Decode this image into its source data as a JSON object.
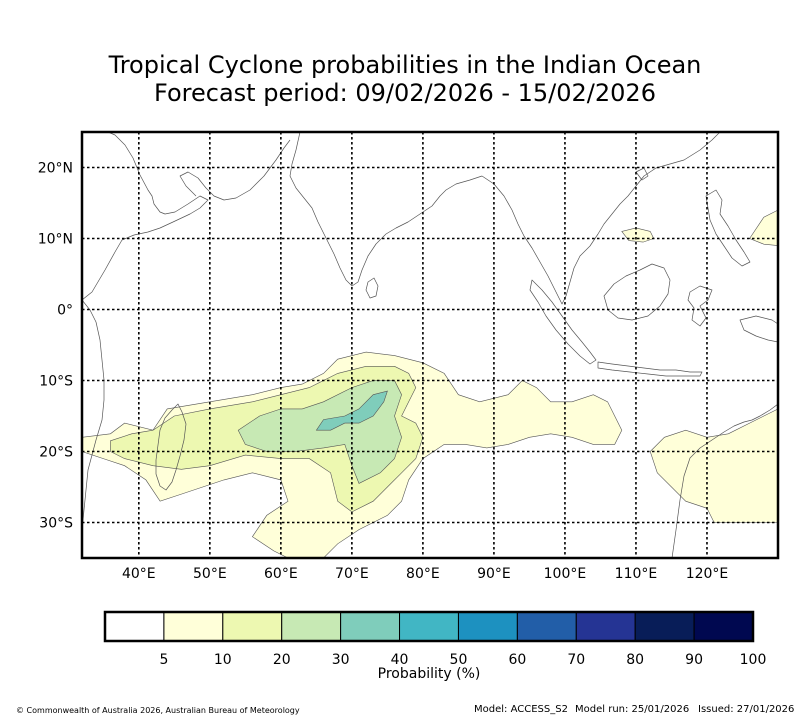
{
  "title": {
    "line1": "Tropical Cyclone probabilities in the Indian Ocean",
    "line2": "Forecast period: 09/02/2026 - 15/02/2026"
  },
  "map": {
    "lon_range": [
      32,
      130
    ],
    "lat_range": [
      -35,
      25
    ],
    "lon_ticks": [
      40,
      50,
      60,
      70,
      80,
      90,
      100,
      110,
      120
    ],
    "lon_labels": [
      "40°E",
      "50°E",
      "60°E",
      "70°E",
      "80°E",
      "90°E",
      "100°E",
      "110°E",
      "120°E"
    ],
    "lat_ticks": [
      20,
      10,
      0,
      -10,
      -20,
      -30
    ],
    "lat_labels": [
      "20°N",
      "10°N",
      "0°",
      "10°S",
      "20°S",
      "30°S"
    ]
  },
  "probability_regions": [
    {
      "level": "5-10",
      "color": "#ffffd9",
      "lonlat": [
        [
          32,
          -18
        ],
        [
          36,
          -17.5
        ],
        [
          38,
          -16
        ],
        [
          42,
          -17
        ],
        [
          44,
          -14
        ],
        [
          50,
          -13
        ],
        [
          56,
          -12
        ],
        [
          60,
          -11
        ],
        [
          63,
          -10.5
        ],
        [
          66,
          -9
        ],
        [
          68,
          -7
        ],
        [
          72,
          -6
        ],
        [
          76,
          -6.5
        ],
        [
          80,
          -7.5
        ],
        [
          83,
          -9
        ],
        [
          85,
          -12
        ],
        [
          88,
          -13
        ],
        [
          92,
          -12
        ],
        [
          94,
          -10
        ],
        [
          96,
          -11
        ],
        [
          98,
          -13
        ],
        [
          101,
          -13
        ],
        [
          104,
          -12
        ],
        [
          106,
          -13
        ],
        [
          107,
          -15
        ],
        [
          108,
          -17
        ],
        [
          107,
          -19
        ],
        [
          104,
          -19
        ],
        [
          101,
          -18
        ],
        [
          98,
          -17.5
        ],
        [
          95,
          -18
        ],
        [
          92,
          -19
        ],
        [
          89,
          -19.5
        ],
        [
          86,
          -19
        ],
        [
          83,
          -19
        ],
        [
          80,
          -21
        ],
        [
          78,
          -24
        ],
        [
          77,
          -27
        ],
        [
          75,
          -29
        ],
        [
          71,
          -31
        ],
        [
          68,
          -33
        ],
        [
          66,
          -35
        ],
        [
          61,
          -35
        ],
        [
          59,
          -34
        ],
        [
          56,
          -32
        ],
        [
          58,
          -29
        ],
        [
          61,
          -27
        ],
        [
          60,
          -24
        ],
        [
          56,
          -23
        ],
        [
          52,
          -24
        ],
        [
          49,
          -25
        ],
        [
          46,
          -26
        ],
        [
          43,
          -27
        ],
        [
          41,
          -24
        ],
        [
          38,
          -22
        ],
        [
          35,
          -21
        ],
        [
          32,
          -20
        ]
      ]
    },
    {
      "level": "5-10",
      "color": "#ffffd9",
      "lonlat": [
        [
          112,
          -20
        ],
        [
          114,
          -18
        ],
        [
          117,
          -17
        ],
        [
          120,
          -18
        ],
        [
          123,
          -17.5
        ],
        [
          126,
          -16
        ],
        [
          128,
          -15
        ],
        [
          130,
          -14
        ],
        [
          130,
          -30
        ],
        [
          124,
          -30
        ],
        [
          121,
          -30
        ],
        [
          120,
          -28
        ],
        [
          117,
          -27
        ],
        [
          115,
          -25
        ],
        [
          113,
          -23
        ]
      ]
    },
    {
      "level": "5-10",
      "color": "#ffffd9",
      "lonlat": [
        [
          108,
          11
        ],
        [
          110,
          11.5
        ],
        [
          112,
          11
        ],
        [
          112.5,
          10
        ],
        [
          111,
          9.5
        ],
        [
          109,
          9.7
        ]
      ]
    },
    {
      "level": "5-10",
      "color": "#ffffd9",
      "lonlat": [
        [
          126,
          10
        ],
        [
          128,
          13
        ],
        [
          130,
          14
        ],
        [
          130,
          9
        ],
        [
          128,
          9.2
        ]
      ]
    },
    {
      "level": "10-20",
      "color": "#edf8b1",
      "lonlat": [
        [
          36,
          -18.5
        ],
        [
          39,
          -17.5
        ],
        [
          42,
          -17
        ],
        [
          45,
          -15
        ],
        [
          50,
          -14
        ],
        [
          56,
          -13
        ],
        [
          60,
          -12
        ],
        [
          64,
          -11
        ],
        [
          68,
          -9
        ],
        [
          72,
          -8
        ],
        [
          76,
          -8
        ],
        [
          78,
          -9
        ],
        [
          79,
          -11
        ],
        [
          78,
          -13
        ],
        [
          77,
          -15
        ],
        [
          79,
          -16
        ],
        [
          80,
          -18
        ],
        [
          79,
          -21
        ],
        [
          77,
          -23
        ],
        [
          75,
          -25
        ],
        [
          73,
          -27
        ],
        [
          70,
          -28.5
        ],
        [
          68,
          -27
        ],
        [
          67,
          -23
        ],
        [
          64,
          -21
        ],
        [
          60,
          -21
        ],
        [
          55,
          -20.5
        ],
        [
          50,
          -22
        ],
        [
          46,
          -22.5
        ],
        [
          42,
          -22
        ],
        [
          38,
          -21
        ],
        [
          36,
          -20
        ]
      ]
    },
    {
      "level": "20-30",
      "color": "#c7e9b4",
      "lonlat": [
        [
          54,
          -17
        ],
        [
          57,
          -15
        ],
        [
          60,
          -14
        ],
        [
          63,
          -14
        ],
        [
          66,
          -13
        ],
        [
          70,
          -11
        ],
        [
          73,
          -10
        ],
        [
          76,
          -10
        ],
        [
          77,
          -12
        ],
        [
          76,
          -15
        ],
        [
          77,
          -18
        ],
        [
          76,
          -21
        ],
        [
          74,
          -23
        ],
        [
          71,
          -24.5
        ],
        [
          70,
          -22
        ],
        [
          69,
          -19
        ],
        [
          66,
          -19.5
        ],
        [
          62,
          -20
        ],
        [
          58,
          -20
        ],
        [
          55,
          -19
        ]
      ]
    },
    {
      "level": "30-40",
      "color": "#7fcdbb",
      "lonlat": [
        [
          65,
          -17
        ],
        [
          66,
          -15.5
        ],
        [
          69,
          -15
        ],
        [
          71,
          -14
        ],
        [
          73,
          -12
        ],
        [
          75,
          -11.5
        ],
        [
          74.5,
          -13
        ],
        [
          73,
          -15
        ],
        [
          71,
          -16
        ],
        [
          69,
          -16
        ],
        [
          67,
          -17
        ]
      ]
    }
  ],
  "colorbar": {
    "colors": [
      "#ffffff",
      "#ffffd9",
      "#edf8b1",
      "#c7e9b4",
      "#7fcdbb",
      "#41b6c4",
      "#1d91c0",
      "#225ea8",
      "#253494",
      "#081d58",
      "#000850"
    ],
    "tick_labels": [
      "5",
      "10",
      "20",
      "30",
      "40",
      "50",
      "60",
      "70",
      "80",
      "90",
      "100"
    ],
    "label": "Probability (%)"
  },
  "footer": {
    "copyright": "© Commonwealth of Australia 2026, Australian Bureau of Meteorology",
    "model": "Model: ACCESS_S2",
    "model_run": "Model run: 25/01/2026",
    "issued": "Issued: 27/01/2026"
  }
}
